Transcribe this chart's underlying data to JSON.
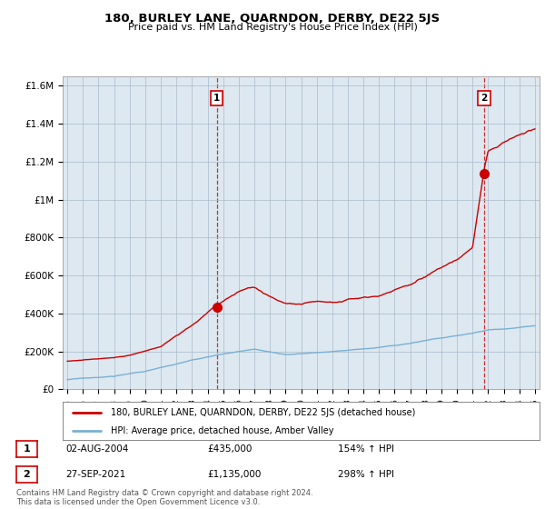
{
  "title": "180, BURLEY LANE, QUARNDON, DERBY, DE22 5JS",
  "subtitle": "Price paid vs. HM Land Registry's House Price Index (HPI)",
  "legend_property": "180, BURLEY LANE, QUARNDON, DERBY, DE22 5JS (detached house)",
  "legend_hpi": "HPI: Average price, detached house, Amber Valley",
  "sale1_date": "02-AUG-2004",
  "sale1_price": "£435,000",
  "sale1_hpi": "154% ↑ HPI",
  "sale2_date": "27-SEP-2021",
  "sale2_price": "£1,135,000",
  "sale2_hpi": "298% ↑ HPI",
  "footer": "Contains HM Land Registry data © Crown copyright and database right 2024.\nThis data is licensed under the Open Government Licence v3.0.",
  "ylim": [
    0,
    1650000
  ],
  "yticks": [
    0,
    200000,
    400000,
    600000,
    800000,
    1000000,
    1200000,
    1400000,
    1600000
  ],
  "ytick_labels": [
    "£0",
    "£200K",
    "£400K",
    "£600K",
    "£800K",
    "£1M",
    "£1.2M",
    "£1.4M",
    "£1.6M"
  ],
  "property_color": "#cc0000",
  "hpi_color": "#7ab0d4",
  "sale_marker_color": "#cc0000",
  "vline_color": "#cc0000",
  "plot_bg_color": "#dde8f0",
  "background_color": "#ffffff",
  "grid_color": "#aabbcc",
  "sale1_x": 2004.58,
  "sale1_y": 435000,
  "sale2_x": 2021.75,
  "sale2_y": 1135000,
  "xlim_left": 1994.7,
  "xlim_right": 2025.3
}
